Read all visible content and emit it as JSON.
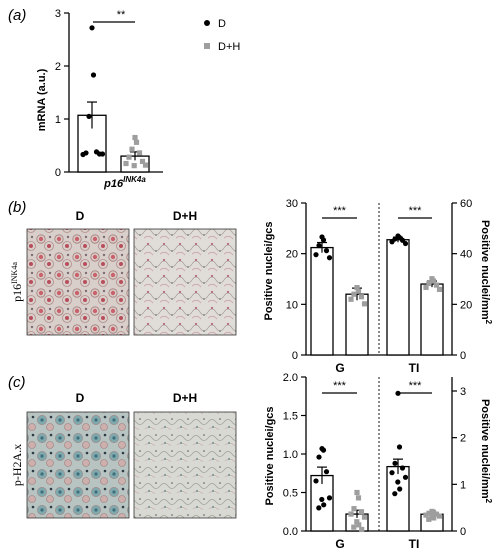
{
  "panels": {
    "a": {
      "label": "(a)"
    },
    "b": {
      "label": "(b)",
      "image_headers": [
        "D",
        "D+H"
      ],
      "stain_label_main": "p16",
      "stain_label_sup": "INK4a"
    },
    "c": {
      "label": "(c)",
      "image_headers": [
        "D",
        "D+H"
      ],
      "stain_label": "p-H2A.x"
    }
  },
  "colors": {
    "D": "#000000",
    "D+H": "#9e9e9e",
    "axis": "#000000"
  },
  "chart_data": [
    {
      "id": "a",
      "type": "bar",
      "title": "",
      "xlabel": "p16",
      "xlabel_sup": "INK4a",
      "ylabel": "mRNA (a.u.)",
      "ylim": [
        0,
        3
      ],
      "yticks": [
        "0",
        "1",
        "2",
        "3"
      ],
      "legend": [
        {
          "name": "D",
          "color": "#000000"
        },
        {
          "name": "D+H",
          "color": "#9e9e9e"
        }
      ],
      "legend_position": "top-right",
      "significance": "**",
      "series": [
        {
          "name": "D",
          "mean": 1.07,
          "sem": 0.25,
          "points": [
            2.72,
            1.83,
            1.05,
            0.38,
            0.36,
            0.34,
            0.33,
            0.34
          ]
        },
        {
          "name": "D+H",
          "mean": 0.3,
          "sem": 0.08,
          "points": [
            0.65,
            0.56,
            0.43,
            0.36,
            0.28,
            0.2,
            0.16,
            0.13,
            0.12
          ]
        }
      ]
    },
    {
      "id": "b",
      "type": "bar",
      "title": "",
      "ylabel_left": "Positive nuclei/gcs",
      "ylabel_right": "Positive nuclei/mm",
      "ylabel_right_sup": "2",
      "ylim_left": [
        0,
        30
      ],
      "yticks_left": [
        "0",
        "10",
        "20",
        "30"
      ],
      "ylim_right": [
        0,
        60
      ],
      "yticks_right": [
        "0",
        "20",
        "40",
        "60"
      ],
      "categories": [
        "G",
        "TI"
      ],
      "significance": [
        "***",
        "***"
      ],
      "series": [
        {
          "name": "D",
          "group": "G",
          "axis": "left",
          "mean": 21.2,
          "sem": 1.0,
          "points": [
            23.3,
            22.7,
            21.6,
            20.6,
            19.8,
            19.2
          ]
        },
        {
          "name": "D+H",
          "group": "G",
          "axis": "left",
          "mean": 12.0,
          "sem": 1.2,
          "points": [
            13.3,
            12.6,
            12.0,
            11.5,
            11.0,
            10.1
          ]
        },
        {
          "name": "D",
          "group": "TI",
          "axis": "right",
          "mean": 45.5,
          "sem": 1.0,
          "points": [
            47.0,
            46.4,
            45.8,
            45.3,
            44.7,
            44.0
          ]
        },
        {
          "name": "D+H",
          "group": "TI",
          "axis": "right",
          "mean": 28.0,
          "sem": 1.2,
          "points": [
            30.1,
            29.2,
            28.3,
            27.6,
            26.7,
            25.9
          ]
        }
      ]
    },
    {
      "id": "c",
      "type": "bar",
      "title": "",
      "ylabel_left": "Positive nuclei/gcs",
      "ylabel_right": "Positive nuclei/mm",
      "ylabel_right_sup": "2",
      "ylim_left": [
        0,
        2.0
      ],
      "yticks_left": [
        "0.0",
        "0.5",
        "1.0",
        "1.5",
        "2.0"
      ],
      "ylim_right": [
        0,
        3.3
      ],
      "yticks_right": [
        "0",
        "1",
        "2",
        "3"
      ],
      "categories": [
        "G",
        "TI"
      ],
      "significance": [
        "***",
        "***"
      ],
      "series": [
        {
          "name": "D",
          "group": "G",
          "axis": "left",
          "mean": 0.72,
          "sem": 0.11,
          "points": [
            1.07,
            1.05,
            0.96,
            0.77,
            0.65,
            0.43,
            0.41,
            0.34,
            0.3
          ]
        },
        {
          "name": "D+H",
          "group": "G",
          "axis": "left",
          "mean": 0.22,
          "sem": 0.05,
          "points": [
            0.5,
            0.43,
            0.29,
            0.25,
            0.22,
            0.18,
            0.12,
            0.08,
            0.05,
            0.02
          ]
        },
        {
          "name": "D",
          "group": "TI",
          "axis": "right",
          "mean": 1.38,
          "sem": 0.16,
          "points": [
            2.95,
            1.8,
            1.45,
            1.35,
            1.25,
            1.15,
            1.05,
            0.9,
            0.8
          ]
        },
        {
          "name": "D+H",
          "group": "TI",
          "axis": "right",
          "mean": 0.36,
          "sem": 0.04,
          "points": [
            0.42,
            0.4,
            0.38,
            0.36,
            0.34,
            0.32,
            0.3,
            0.28,
            0.25
          ]
        }
      ]
    }
  ]
}
